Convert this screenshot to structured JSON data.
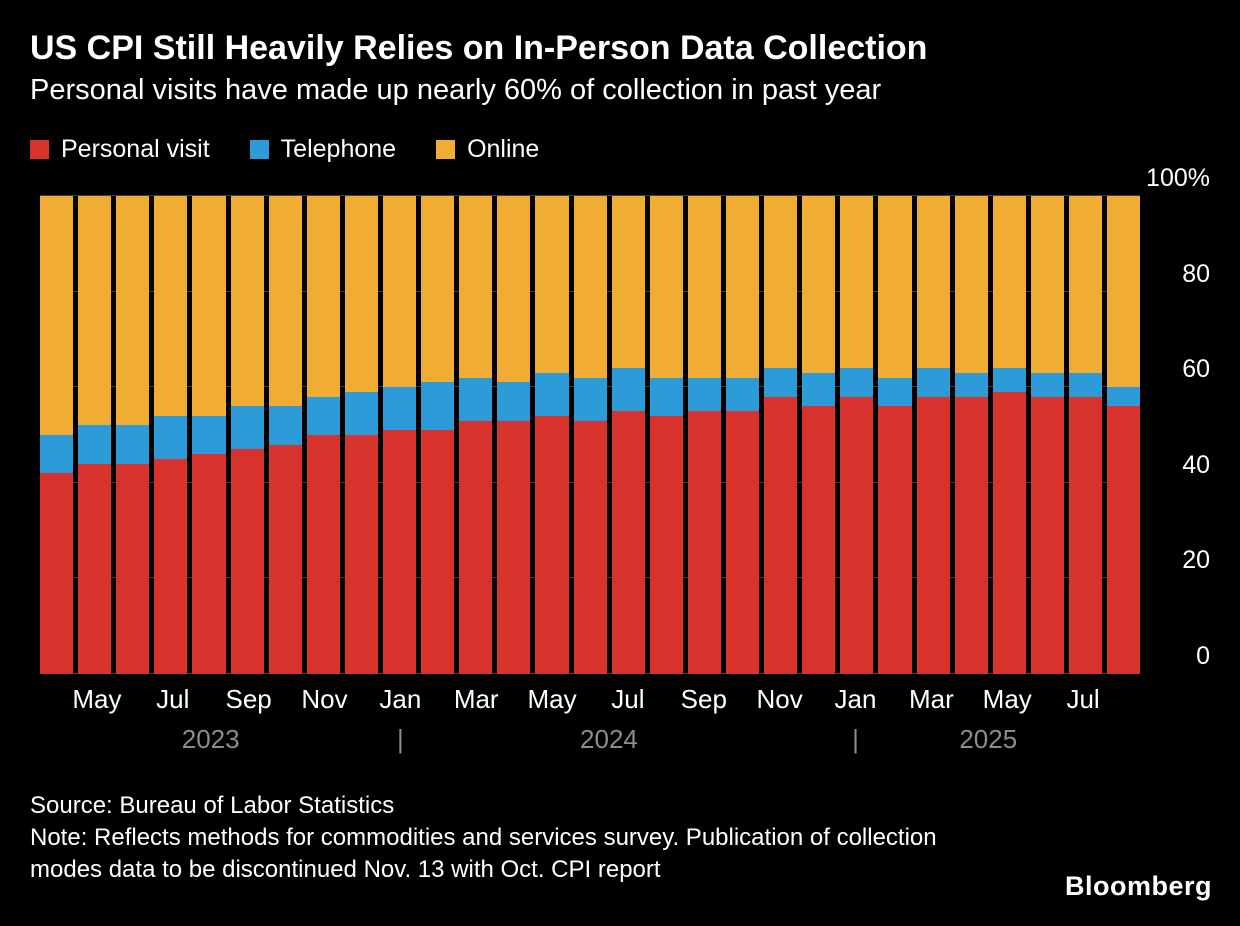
{
  "header": {
    "title": "US CPI Still Heavily Relies on In-Person Data Collection",
    "subtitle": "Personal visits have made up nearly 60% of collection in past year"
  },
  "footer": {
    "source": "Source: Bureau of Labor Statistics",
    "note": "Note: Reflects methods for commodities and services survey. Publication of collection modes data to be discontinued Nov. 13 with Oct. CPI report",
    "brand": "Bloomberg"
  },
  "chart_data": {
    "type": "bar",
    "stacked": true,
    "unit": "%",
    "title": "US CPI Still Heavily Relies on In-Person Data Collection",
    "subtitle": "Personal visits have made up nearly 60% of collection in past year",
    "ylim": [
      0,
      100
    ],
    "y_ticks": [
      0,
      20,
      40,
      60,
      80,
      100
    ],
    "y_max_label": "100%",
    "grid_color": "#3d3d3d",
    "background": "#000000",
    "year_color": "#8c8c8c",
    "year_separator": "|",
    "categories": [
      "Apr 2023",
      "May 2023",
      "Jun 2023",
      "Jul 2023",
      "Aug 2023",
      "Sep 2023",
      "Oct 2023",
      "Nov 2023",
      "Dec 2023",
      "Jan 2024",
      "Feb 2024",
      "Mar 2024",
      "Apr 2024",
      "May 2024",
      "Jun 2024",
      "Jul 2024",
      "Aug 2024",
      "Sep 2024",
      "Oct 2024",
      "Nov 2024",
      "Dec 2024",
      "Jan 2025",
      "Feb 2025",
      "Mar 2025",
      "Apr 2025",
      "May 2025",
      "Jun 2025",
      "Jul 2025",
      "Aug 2025"
    ],
    "series": [
      {
        "name": "Personal visit",
        "color": "#d8322d",
        "values": [
          42,
          44,
          44,
          45,
          46,
          47,
          48,
          50,
          50,
          51,
          51,
          53,
          53,
          54,
          53,
          55,
          54,
          55,
          55,
          58,
          56,
          58,
          56,
          58,
          58,
          59,
          58,
          58,
          56
        ]
      },
      {
        "name": "Telephone",
        "color": "#2d9bd8",
        "values": [
          8,
          8,
          8,
          9,
          8,
          9,
          8,
          8,
          9,
          9,
          10,
          9,
          8,
          9,
          9,
          9,
          8,
          7,
          7,
          6,
          7,
          6,
          6,
          6,
          5,
          5,
          5,
          5,
          4
        ]
      },
      {
        "name": "Online",
        "color": "#f1ac33",
        "values": [
          50,
          48,
          48,
          46,
          46,
          44,
          44,
          42,
          41,
          40,
          39,
          38,
          39,
          37,
          38,
          36,
          38,
          38,
          38,
          36,
          37,
          36,
          38,
          36,
          37,
          36,
          37,
          37,
          40
        ]
      }
    ],
    "x_ticks": [
      {
        "bar": 1,
        "label": "May"
      },
      {
        "bar": 3,
        "label": "Jul"
      },
      {
        "bar": 5,
        "label": "Sep"
      },
      {
        "bar": 7,
        "label": "Nov"
      },
      {
        "bar": 9,
        "label": "Jan"
      },
      {
        "bar": 11,
        "label": "Mar"
      },
      {
        "bar": 13,
        "label": "May"
      },
      {
        "bar": 15,
        "label": "Jul"
      },
      {
        "bar": 17,
        "label": "Sep"
      },
      {
        "bar": 19,
        "label": "Nov"
      },
      {
        "bar": 21,
        "label": "Jan"
      },
      {
        "bar": 23,
        "label": "Mar"
      },
      {
        "bar": 25,
        "label": "May"
      },
      {
        "bar": 27,
        "label": "Jul"
      }
    ],
    "year_groups": [
      {
        "label": "2023",
        "from": 0,
        "to": 8
      },
      {
        "label": "2024",
        "from": 9,
        "to": 20,
        "separator_at": 9
      },
      {
        "label": "2025",
        "from": 21,
        "to": 28,
        "separator_at": 21
      }
    ]
  }
}
